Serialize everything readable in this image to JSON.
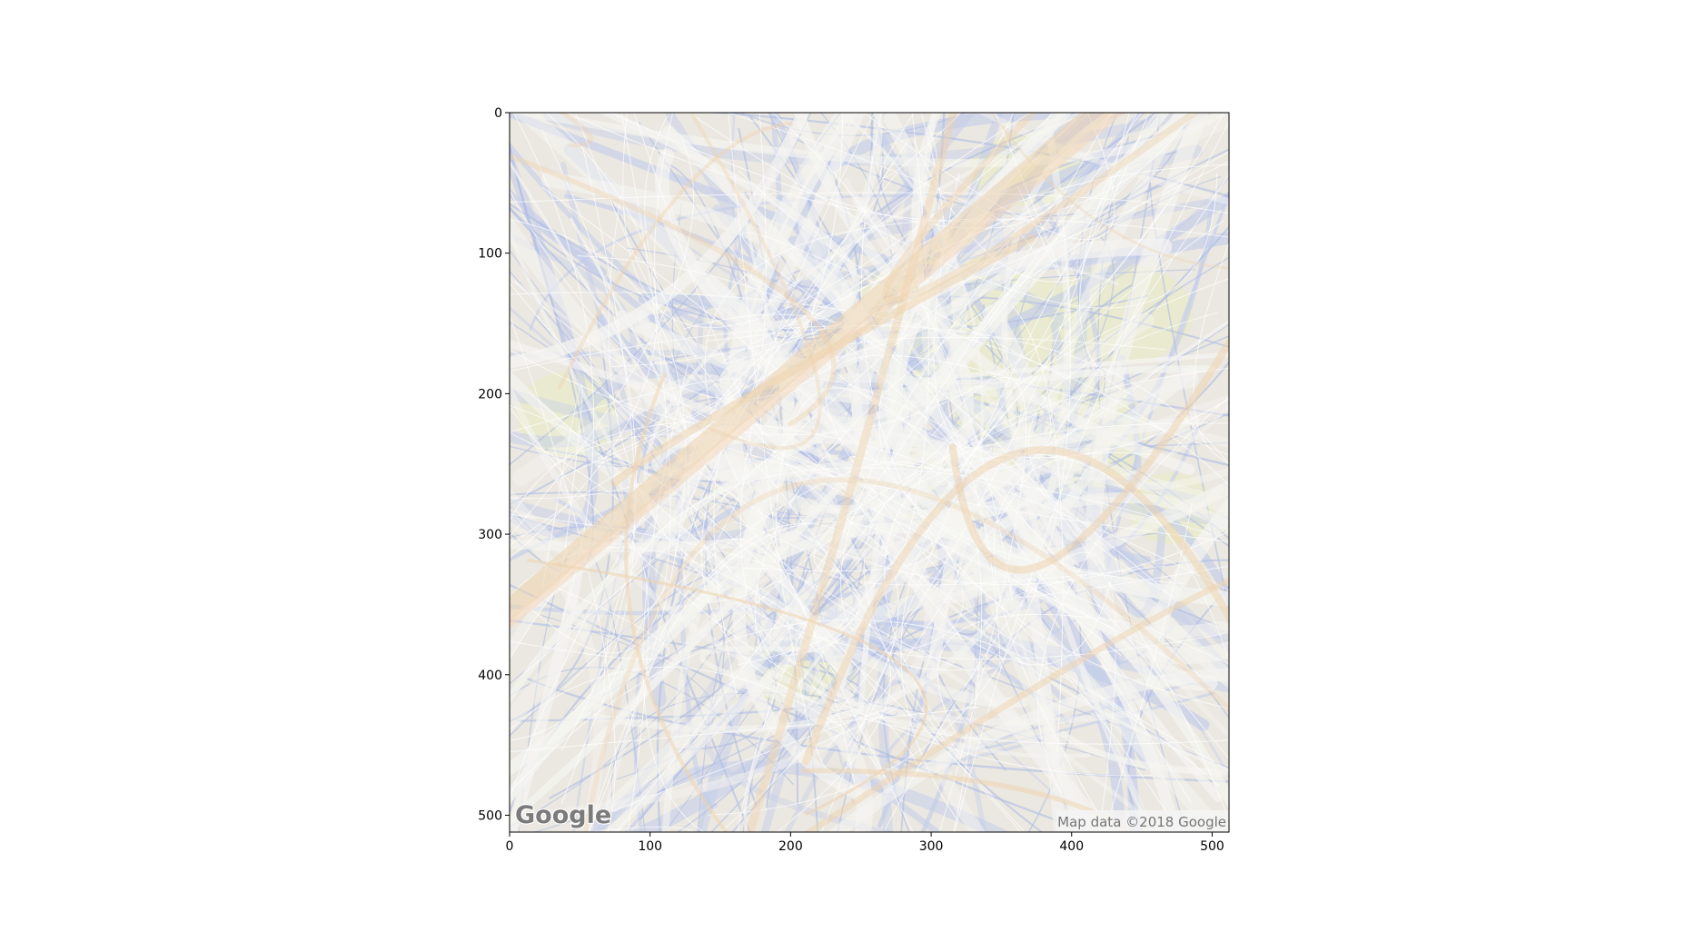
{
  "image": {
    "description_free": true,
    "x_axis": {
      "range": [
        0,
        512
      ],
      "ticks": [
        0,
        100,
        200,
        300,
        400,
        500
      ]
    },
    "y_axis": {
      "range": [
        0,
        512
      ],
      "inverted": true,
      "ticks": [
        0,
        100,
        200,
        300,
        400,
        500
      ]
    },
    "grid": false
  },
  "map": {
    "logo_text": "Google",
    "attribution": "Map data ©2018 Google"
  },
  "colors": {
    "map_base": "#e4dfd6",
    "road_orange": "#e8c28f",
    "road_blue": "#aab9e3",
    "road_white": "#f2f1ec",
    "park_green": "#dfe3b4",
    "axis": "#000000"
  }
}
